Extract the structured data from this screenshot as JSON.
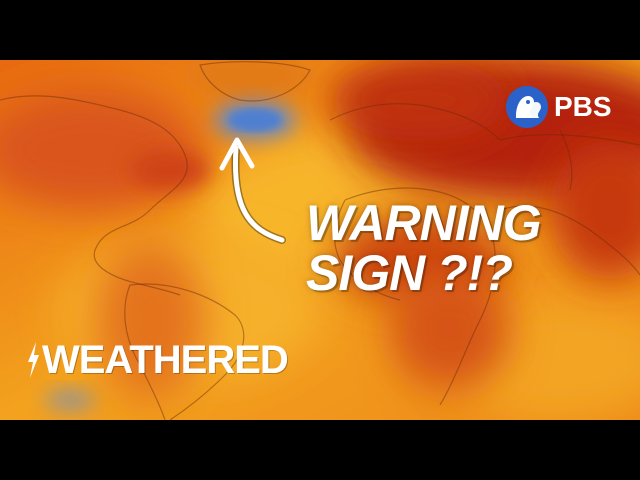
{
  "headline": {
    "line1": "WARNING",
    "line2": "SIGN ?!?"
  },
  "brand": {
    "name": "WEATHERED"
  },
  "network": {
    "name": "PBS"
  },
  "colors": {
    "hot_red": "#b3200e",
    "orange": "#e8590c",
    "yellow": "#f5a623",
    "cold_blue": "#5a86c9",
    "pbs_blue": "#2a62c9"
  }
}
